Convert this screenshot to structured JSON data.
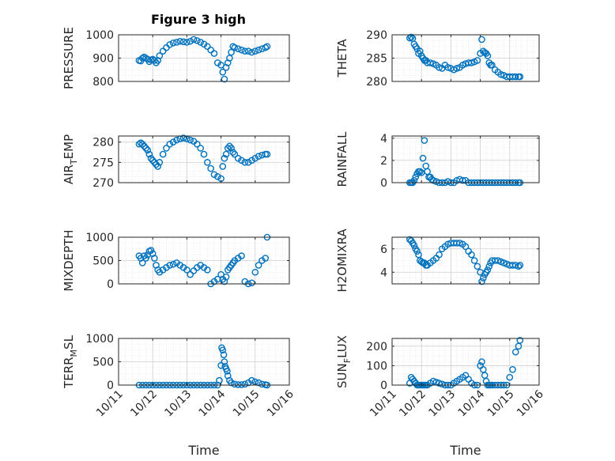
{
  "figure": {
    "title": "Figure 3 high"
  },
  "colors": {
    "marker": "#0072BD",
    "grid": "#dcdcdc",
    "axes": "#262626"
  },
  "chart_data": [
    {
      "type": "scatter",
      "ylabel": "PRESSURE",
      "yticks": [
        800,
        900,
        1000
      ],
      "ylim": [
        800,
        1000
      ],
      "xlim": [
        0,
        5
      ],
      "xticks": [
        0,
        1,
        2,
        3,
        4,
        5
      ],
      "xticklabels": [
        "10/11",
        "10/12",
        "10/13",
        "10/14",
        "10/15",
        "10/16"
      ],
      "showXTickLabels": false,
      "title": "Figure 3 high",
      "grid": true,
      "x": [
        0.6,
        0.65,
        0.7,
        0.75,
        0.8,
        0.85,
        0.9,
        0.95,
        1.0,
        1.05,
        1.1,
        1.15,
        1.2,
        1.3,
        1.4,
        1.5,
        1.6,
        1.7,
        1.8,
        1.9,
        2.0,
        2.1,
        2.2,
        2.3,
        2.4,
        2.5,
        2.6,
        2.7,
        2.8,
        2.9,
        3.0,
        3.05,
        3.1,
        3.15,
        3.2,
        3.25,
        3.3,
        3.35,
        3.4,
        3.5,
        3.6,
        3.7,
        3.8,
        3.9,
        4.0,
        4.1,
        4.2,
        4.3,
        4.35
      ],
      "y": [
        890,
        888,
        900,
        905,
        900,
        895,
        885,
        892,
        895,
        890,
        880,
        890,
        910,
        930,
        945,
        958,
        965,
        968,
        972,
        970,
        968,
        972,
        980,
        975,
        968,
        960,
        950,
        935,
        920,
        880,
        870,
        840,
        810,
        860,
        880,
        900,
        925,
        950,
        945,
        940,
        935,
        930,
        930,
        925,
        930,
        935,
        940,
        945,
        950
      ]
    },
    {
      "type": "scatter",
      "ylabel": "THETA",
      "yticks": [
        280,
        285,
        290
      ],
      "ylim": [
        280,
        290
      ],
      "xlim": [
        0,
        5
      ],
      "xticks": [
        0,
        1,
        2,
        3,
        4,
        5
      ],
      "xticklabels": [
        "10/11",
        "10/12",
        "10/13",
        "10/14",
        "10/15",
        "10/16"
      ],
      "showXTickLabels": false,
      "grid": true,
      "x": [
        0.6,
        0.65,
        0.7,
        0.75,
        0.8,
        0.85,
        0.9,
        0.95,
        1.0,
        1.05,
        1.1,
        1.15,
        1.2,
        1.3,
        1.4,
        1.5,
        1.6,
        1.7,
        1.8,
        1.9,
        2.0,
        2.1,
        2.2,
        2.3,
        2.4,
        2.5,
        2.6,
        2.7,
        2.8,
        2.9,
        3.0,
        3.05,
        3.1,
        3.15,
        3.2,
        3.25,
        3.3,
        3.35,
        3.4,
        3.5,
        3.6,
        3.7,
        3.8,
        3.9,
        4.0,
        4.1,
        4.2,
        4.3,
        4.35
      ],
      "y": [
        289.3,
        289.5,
        289.2,
        288.0,
        287.5,
        287.0,
        286.0,
        286.5,
        285.5,
        285.0,
        284.5,
        284.5,
        284.0,
        284.0,
        283.8,
        283.5,
        283.0,
        282.8,
        283.5,
        283.0,
        282.8,
        282.5,
        282.8,
        283.0,
        283.5,
        283.8,
        284.0,
        284.0,
        284.2,
        284.5,
        286.0,
        289.0,
        286.5,
        286.2,
        286.0,
        285.5,
        284.0,
        283.5,
        283.5,
        282.5,
        282.0,
        281.5,
        281.3,
        281.0,
        281.0,
        281.0,
        281.0,
        281.0,
        281.0
      ]
    },
    {
      "type": "scatter",
      "ylabel": "AIR",
      "ylabel_sub": "T",
      "ylabel_tail": "EMP",
      "yticks": [
        270,
        275,
        280
      ],
      "ylim": [
        270,
        281.5
      ],
      "xlim": [
        0,
        5
      ],
      "xticks": [
        0,
        1,
        2,
        3,
        4,
        5
      ],
      "xticklabels": [
        "10/11",
        "10/12",
        "10/13",
        "10/14",
        "10/15",
        "10/16"
      ],
      "showXTickLabels": false,
      "grid": true,
      "x": [
        0.6,
        0.65,
        0.7,
        0.75,
        0.8,
        0.85,
        0.9,
        0.95,
        1.0,
        1.05,
        1.1,
        1.15,
        1.2,
        1.3,
        1.4,
        1.5,
        1.6,
        1.7,
        1.8,
        1.9,
        2.0,
        2.1,
        2.2,
        2.3,
        2.4,
        2.5,
        2.6,
        2.7,
        2.8,
        2.9,
        3.0,
        3.05,
        3.1,
        3.15,
        3.2,
        3.25,
        3.3,
        3.35,
        3.4,
        3.5,
        3.6,
        3.7,
        3.8,
        3.9,
        4.0,
        4.1,
        4.2,
        4.3,
        4.35
      ],
      "y": [
        279.5,
        279.8,
        279.5,
        279.0,
        278.5,
        278.0,
        277.0,
        276.0,
        275.5,
        275.0,
        274.5,
        274.0,
        275.0,
        277.0,
        278.5,
        279.5,
        280.0,
        280.5,
        280.8,
        281.0,
        280.8,
        280.5,
        280.2,
        279.5,
        278.5,
        277.0,
        275.0,
        273.5,
        272.0,
        271.5,
        271.0,
        274.0,
        276.0,
        277.0,
        278.5,
        279.0,
        278.5,
        277.5,
        277.0,
        276.0,
        275.5,
        275.0,
        275.0,
        275.5,
        276.0,
        276.5,
        276.8,
        277.0,
        277.0
      ]
    },
    {
      "type": "scatter",
      "ylabel": "RAINFALL",
      "yticks": [
        0,
        2,
        4
      ],
      "ylim": [
        0,
        4.2
      ],
      "xlim": [
        0,
        5
      ],
      "xticks": [
        0,
        1,
        2,
        3,
        4,
        5
      ],
      "xticklabels": [
        "10/11",
        "10/12",
        "10/13",
        "10/14",
        "10/15",
        "10/16"
      ],
      "showXTickLabels": false,
      "grid": true,
      "x": [
        0.6,
        0.65,
        0.7,
        0.75,
        0.8,
        0.85,
        0.9,
        0.95,
        1.0,
        1.05,
        1.1,
        1.15,
        1.2,
        1.25,
        1.3,
        1.35,
        1.4,
        1.5,
        1.6,
        1.7,
        1.8,
        1.9,
        2.0,
        2.1,
        2.2,
        2.3,
        2.4,
        2.5,
        2.6,
        2.7,
        2.8,
        2.9,
        3.0,
        3.1,
        3.2,
        3.3,
        3.4,
        3.5,
        3.6,
        3.7,
        3.8,
        3.9,
        4.0,
        4.1,
        4.2,
        4.3,
        4.35
      ],
      "y": [
        0,
        0,
        0,
        0.2,
        0.5,
        0.8,
        1.0,
        1.0,
        0.9,
        2.2,
        3.8,
        1.5,
        1.0,
        0.5,
        0.5,
        0.3,
        0.2,
        0.1,
        0,
        0,
        0,
        0.1,
        0,
        0,
        0.2,
        0.3,
        0.2,
        0.2,
        0,
        0,
        0,
        0,
        0,
        0,
        0,
        0,
        0,
        0,
        0,
        0,
        0,
        0,
        0,
        0,
        0,
        0,
        0
      ]
    },
    {
      "type": "scatter",
      "ylabel": "MIXDEPTH",
      "yticks": [
        0,
        500,
        1000
      ],
      "ylim": [
        0,
        1000
      ],
      "xlim": [
        0,
        5
      ],
      "xticks": [
        0,
        1,
        2,
        3,
        4,
        5
      ],
      "xticklabels": [
        "10/11",
        "10/12",
        "10/13",
        "10/14",
        "10/15",
        "10/16"
      ],
      "showXTickLabels": false,
      "grid": true,
      "x": [
        0.6,
        0.65,
        0.7,
        0.75,
        0.8,
        0.85,
        0.9,
        0.95,
        1.0,
        1.05,
        1.1,
        1.15,
        1.2,
        1.3,
        1.4,
        1.5,
        1.6,
        1.7,
        1.8,
        1.9,
        2.0,
        2.1,
        2.2,
        2.3,
        2.4,
        2.5,
        2.6,
        2.7,
        2.8,
        2.9,
        3.0,
        3.05,
        3.1,
        3.15,
        3.2,
        3.25,
        3.3,
        3.35,
        3.4,
        3.5,
        3.6,
        3.7,
        3.8,
        3.9,
        4.0,
        4.1,
        4.2,
        4.3,
        4.35
      ],
      "y": [
        600,
        550,
        450,
        600,
        550,
        620,
        700,
        720,
        650,
        550,
        400,
        300,
        250,
        300,
        350,
        400,
        420,
        450,
        400,
        350,
        300,
        200,
        280,
        350,
        400,
        350,
        300,
        0,
        50,
        100,
        200,
        100,
        50,
        150,
        300,
        350,
        400,
        450,
        500,
        550,
        600,
        50,
        0,
        20,
        250,
        400,
        500,
        550,
        1000
      ]
    },
    {
      "type": "scatter",
      "ylabel": "H2OMIXRA",
      "yticks": [
        4,
        6
      ],
      "ylim": [
        3,
        7
      ],
      "xlim": [
        0,
        5
      ],
      "xticks": [
        0,
        1,
        2,
        3,
        4,
        5
      ],
      "xticklabels": [
        "10/11",
        "10/12",
        "10/13",
        "10/14",
        "10/15",
        "10/16"
      ],
      "showXTickLabels": false,
      "grid": true,
      "x": [
        0.6,
        0.65,
        0.7,
        0.75,
        0.8,
        0.85,
        0.9,
        0.95,
        1.0,
        1.05,
        1.1,
        1.15,
        1.2,
        1.3,
        1.4,
        1.5,
        1.6,
        1.7,
        1.8,
        1.9,
        2.0,
        2.1,
        2.2,
        2.3,
        2.4,
        2.5,
        2.6,
        2.7,
        2.8,
        2.9,
        3.0,
        3.05,
        3.1,
        3.15,
        3.2,
        3.25,
        3.3,
        3.35,
        3.4,
        3.5,
        3.6,
        3.7,
        3.8,
        3.9,
        4.0,
        4.1,
        4.2,
        4.3,
        4.35
      ],
      "y": [
        6.8,
        6.7,
        6.5,
        6.3,
        6.0,
        5.8,
        5.5,
        5.0,
        4.9,
        4.8,
        4.8,
        4.6,
        4.6,
        4.8,
        5.0,
        5.2,
        5.5,
        6.0,
        6.2,
        6.4,
        6.5,
        6.5,
        6.5,
        6.5,
        6.4,
        6.2,
        5.8,
        5.5,
        5.0,
        4.5,
        4.0,
        3.2,
        3.5,
        3.8,
        4.0,
        4.2,
        4.5,
        4.8,
        5.0,
        5.0,
        5.0,
        4.9,
        4.8,
        4.7,
        4.6,
        4.6,
        4.6,
        4.5,
        4.6
      ]
    },
    {
      "type": "scatter",
      "ylabel": "TERR",
      "ylabel_sub": "M",
      "ylabel_tail": "SL",
      "yticks": [
        0,
        500,
        1000
      ],
      "ylim": [
        0,
        1000
      ],
      "xlim": [
        0,
        5
      ],
      "xticks": [
        0,
        1,
        2,
        3,
        4,
        5
      ],
      "xticklabels": [
        "10/11",
        "10/12",
        "10/13",
        "10/14",
        "10/15",
        "10/16"
      ],
      "showXTickLabels": true,
      "xlabel": "Time",
      "grid": true,
      "x": [
        0.6,
        0.7,
        0.8,
        0.9,
        1.0,
        1.1,
        1.2,
        1.3,
        1.4,
        1.5,
        1.6,
        1.7,
        1.8,
        1.9,
        2.0,
        2.1,
        2.2,
        2.3,
        2.4,
        2.5,
        2.6,
        2.7,
        2.8,
        2.9,
        2.95,
        3.0,
        3.02,
        3.05,
        3.08,
        3.1,
        3.12,
        3.15,
        3.18,
        3.2,
        3.25,
        3.3,
        3.4,
        3.5,
        3.6,
        3.7,
        3.8,
        3.9,
        4.0,
        4.1,
        4.2,
        4.3,
        4.35
      ],
      "y": [
        0,
        0,
        0,
        0,
        0,
        0,
        0,
        0,
        0,
        0,
        0,
        0,
        0,
        0,
        0,
        0,
        0,
        0,
        0,
        0,
        0,
        0,
        0,
        0,
        100,
        420,
        800,
        750,
        650,
        500,
        400,
        350,
        300,
        200,
        100,
        50,
        20,
        10,
        10,
        20,
        50,
        100,
        70,
        50,
        20,
        10,
        0
      ]
    },
    {
      "type": "scatter",
      "ylabel": "SUN",
      "ylabel_sub": "F",
      "ylabel_tail": "LUX",
      "yticks": [
        0,
        100,
        200
      ],
      "ylim": [
        0,
        240
      ],
      "xlim": [
        0,
        5
      ],
      "xticks": [
        0,
        1,
        2,
        3,
        4,
        5
      ],
      "xticklabels": [
        "10/11",
        "10/12",
        "10/13",
        "10/14",
        "10/15",
        "10/16"
      ],
      "showXTickLabels": true,
      "xlabel": "Time",
      "grid": true,
      "x": [
        0.6,
        0.65,
        0.7,
        0.75,
        0.8,
        0.85,
        0.9,
        0.95,
        1.0,
        1.05,
        1.1,
        1.15,
        1.2,
        1.3,
        1.4,
        1.5,
        1.6,
        1.7,
        1.8,
        1.9,
        2.0,
        2.1,
        2.2,
        2.3,
        2.4,
        2.5,
        2.6,
        2.7,
        2.8,
        2.9,
        3.0,
        3.05,
        3.1,
        3.15,
        3.2,
        3.25,
        3.3,
        3.35,
        3.4,
        3.5,
        3.6,
        3.7,
        3.8,
        3.9,
        4.0,
        4.1,
        4.2,
        4.3,
        4.35
      ],
      "y": [
        10,
        40,
        30,
        20,
        10,
        0,
        0,
        0,
        0,
        0,
        0,
        0,
        0,
        10,
        20,
        15,
        10,
        5,
        0,
        0,
        0,
        10,
        20,
        30,
        40,
        50,
        30,
        10,
        0,
        0,
        100,
        120,
        80,
        50,
        20,
        0,
        0,
        0,
        0,
        0,
        0,
        0,
        0,
        0,
        40,
        80,
        170,
        200,
        230
      ]
    }
  ]
}
